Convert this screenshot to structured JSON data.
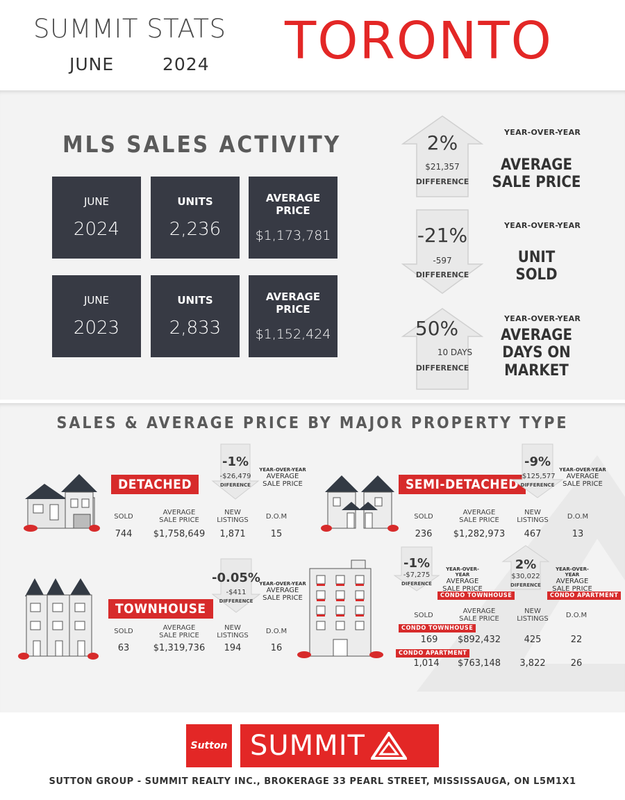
{
  "header": {
    "title": "SUMMIT STATS",
    "month": "JUNE",
    "year": "2024",
    "city": "TORONTO"
  },
  "mls": {
    "title": "MLS SALES ACTIVITY",
    "rows": [
      {
        "month": "JUNE",
        "year": "2024",
        "units_label": "UNITS",
        "units": "2,236",
        "price_label": "AVERAGE PRICE",
        "price": "$1,173,781"
      },
      {
        "month": "JUNE",
        "year": "2023",
        "units_label": "UNITS",
        "units": "2,833",
        "price_label": "AVERAGE PRICE",
        "price": "$1,152,424"
      }
    ]
  },
  "yoy": [
    {
      "direction": "up",
      "pct": "2%",
      "amount": "$21,357",
      "diff_label": "DIFFERENCE",
      "yoy_label": "YEAR-OVER-YEAR",
      "metric_1": "AVERAGE",
      "metric_2": "SALE PRICE",
      "metric_3": ""
    },
    {
      "direction": "down",
      "pct": "-21%",
      "amount": "-597",
      "diff_label": "DIFFERENCE",
      "yoy_label": "YEAR-OVER-YEAR",
      "metric_1": "UNIT",
      "metric_2": "SOLD",
      "metric_3": ""
    },
    {
      "direction": "up",
      "pct": "50%",
      "amount": "10 DAYS",
      "diff_label": "DIFFERENCE",
      "yoy_label": "YEAR-OVER-YEAR",
      "metric_1": "AVERAGE",
      "metric_2": "DAYS ON",
      "metric_3": "MARKET"
    }
  ],
  "property": {
    "title": "SALES & AVERAGE PRICE BY MAJOR PROPERTY TYPE",
    "headers": {
      "sold": "SOLD",
      "avg_1": "AVERAGE",
      "avg_2": "SALE PRICE",
      "new_1": "NEW",
      "new_2": "LISTINGS",
      "dom": "D.O.M"
    },
    "yoy_label": "YEAR-OVER-YEAR",
    "avg_label_1": "AVERAGE",
    "avg_label_2": "SALE PRICE",
    "detached": {
      "tag": "DETACHED",
      "pct": "-1%",
      "amount": "-$26,479",
      "diff_label": "DIFFERENCE",
      "sold": "744",
      "price": "$1,758,649",
      "listings": "1,871",
      "dom": "15"
    },
    "semi": {
      "tag": "SEMI-DETACHED",
      "pct": "-9%",
      "amount": "-$125,577",
      "diff_label": "DIFFERENCE",
      "sold": "236",
      "price": "$1,282,973",
      "listings": "467",
      "dom": "13"
    },
    "townhouse": {
      "tag": "TOWNHOUSE",
      "pct": "-0.05%",
      "amount": "-$411",
      "diff_label": "DIFFERENCE",
      "sold": "63",
      "price": "$1,319,736",
      "listings": "194",
      "dom": "16"
    },
    "condo_town": {
      "tag": "CONDO TOWNHOUSE",
      "pct": "-1%",
      "amount": "-$7,275",
      "diff_label": "DIFERENCE",
      "sold": "169",
      "price": "$892,432",
      "listings": "425",
      "dom": "22"
    },
    "condo_apt": {
      "tag": "CONDO APARTMENT",
      "pct": "2%",
      "amount": "$30,022",
      "diff_label": "DIFERENCE",
      "sold": "1,014",
      "price": "$763,148",
      "listings": "3,822",
      "dom": "26"
    },
    "detached_diff_label": "DIFERENCE"
  },
  "footer": {
    "sutton": "Sutton",
    "summit": "SUMMIT",
    "address": "SUTTON GROUP - SUMMIT REALTY INC., BROKERAGE 33 PEARL STREET, MISSISSAUGA, ON L5M1X1"
  },
  "colors": {
    "accent": "#e32726",
    "tile": "#373a44",
    "band": "#f3f3f3"
  }
}
